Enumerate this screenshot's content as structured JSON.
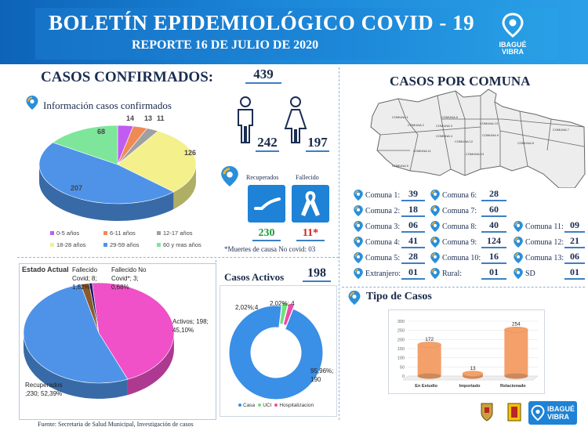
{
  "header": {
    "title": "BOLETÍN EPIDEMIOLÓGICO COVID - 19",
    "subtitle": "REPORTE 16 DE JULIO DE 2020",
    "logo_text_1": "IBAGUÉ",
    "logo_text_2": "VIBRA"
  },
  "confirmados": {
    "label": "CASOS CONFIRMADOS:",
    "total": "439",
    "info_label": "Información casos confirmados",
    "men": "242",
    "women": "197"
  },
  "recuperados": {
    "recuperados_label": "Recuperados",
    "fallecido_label": "Fallecido",
    "recuperados_value": "230",
    "fallecido_value": "11*",
    "nota": "*Muertes de causa No covid: 03"
  },
  "comunas": {
    "title": "CASOS POR COMUNA",
    "items": [
      {
        "label": "Comuna 1:",
        "value": "39"
      },
      {
        "label": "Comuna 2:",
        "value": "18"
      },
      {
        "label": "Comuna 3:",
        "value": "06"
      },
      {
        "label": "Comuna 4:",
        "value": "41"
      },
      {
        "label": "Comuna 5:",
        "value": "28"
      },
      {
        "label": "Extranjero:",
        "value": "01"
      },
      {
        "label": "Comuna 6:",
        "value": "28"
      },
      {
        "label": "Comuna 7:",
        "value": "60"
      },
      {
        "label": "Comuna 8:",
        "value": "40"
      },
      {
        "label": "Comuna 9:",
        "value": "124"
      },
      {
        "label": "Comuna 10:",
        "value": "16"
      },
      {
        "label": "Rural:",
        "value": "01"
      },
      {
        "label": "Comuna 11:",
        "value": "09"
      },
      {
        "label": "Comuna 12:",
        "value": "21"
      },
      {
        "label": "Comuna 13:",
        "value": "06"
      },
      {
        "label": "SD",
        "value": "01"
      }
    ],
    "map_labels": [
      "COMUNA 1",
      "COMUNA 2",
      "COMUNA 3",
      "COMUNA 4",
      "COMUNA 5",
      "COMUNA 6",
      "COMUNA 7",
      "COMUNA 8",
      "COMUNA 9",
      "COMUNA 10",
      "COMUNA 11",
      "COMUNA 12",
      "COMUNA 13"
    ]
  },
  "activos": {
    "label": "Casos Activos",
    "value": "198"
  },
  "tipo_casos": {
    "label": "Tipo de Casos"
  },
  "footer": {
    "source": "Fuente: Secretaria de Salud Municipal, Investigación de casos"
  },
  "colors": {
    "header_blue": "#1673c7",
    "accent_blue": "#3c7fc4",
    "red": "#d42020",
    "green": "#1f9a3c"
  },
  "chart_data": [
    {
      "type": "pie",
      "style": "3d",
      "categories": [
        "0-5 años",
        "6-11 años",
        "12-17 años",
        "18-28 años",
        "29-59 años",
        "60 y mas años"
      ],
      "values": [
        14,
        13,
        11,
        126,
        207,
        68
      ],
      "colors": [
        "#c05cf0",
        "#f08a55",
        "#a0a0a0",
        "#f4f08c",
        "#4e93e8",
        "#7ee69a"
      ],
      "legend": "bottom"
    },
    {
      "type": "pie",
      "style": "3d",
      "title": "Estado Actual",
      "categories": [
        "Fallecido Covid",
        "Fallecido No Covid*",
        "Activos",
        "Recuperados"
      ],
      "values": [
        8,
        3,
        198,
        230
      ],
      "percent": [
        "1,82%",
        "0,68%",
        "45,10%",
        "52,39%"
      ],
      "data_labels": [
        "Fallecido Covid; 8; 1,82%",
        "Fallecido No Covid*; 3; 0,68%",
        "Activos; 198; 45,10%",
        "Recuperados ;230; 52,39%"
      ],
      "colors": [
        "#8a5a2a",
        "#1a1a6a",
        "#f050c8",
        "#4e93e8"
      ]
    },
    {
      "type": "pie",
      "style": "donut",
      "categories": [
        "Casa",
        "UCI",
        "Hospitalizacion"
      ],
      "values": [
        190,
        4,
        4
      ],
      "percent": [
        "95,96%",
        "2,02%",
        "2,02%"
      ],
      "data_labels": [
        "95,96%; 190",
        "2,02%;4",
        "2,02%; 4"
      ],
      "colors": [
        "#3a8fe6",
        "#6fe07a",
        "#f04aa8"
      ],
      "legend": "bottom"
    },
    {
      "type": "bar",
      "style": "3d-cylinder",
      "categories": [
        "En Estudio",
        "Importado",
        "Relacionado"
      ],
      "values": [
        172,
        13,
        254
      ],
      "ylim": [
        0,
        300
      ],
      "yticks": [
        0,
        50,
        100,
        150,
        200,
        250,
        300
      ],
      "color": "#f4a06a"
    }
  ]
}
